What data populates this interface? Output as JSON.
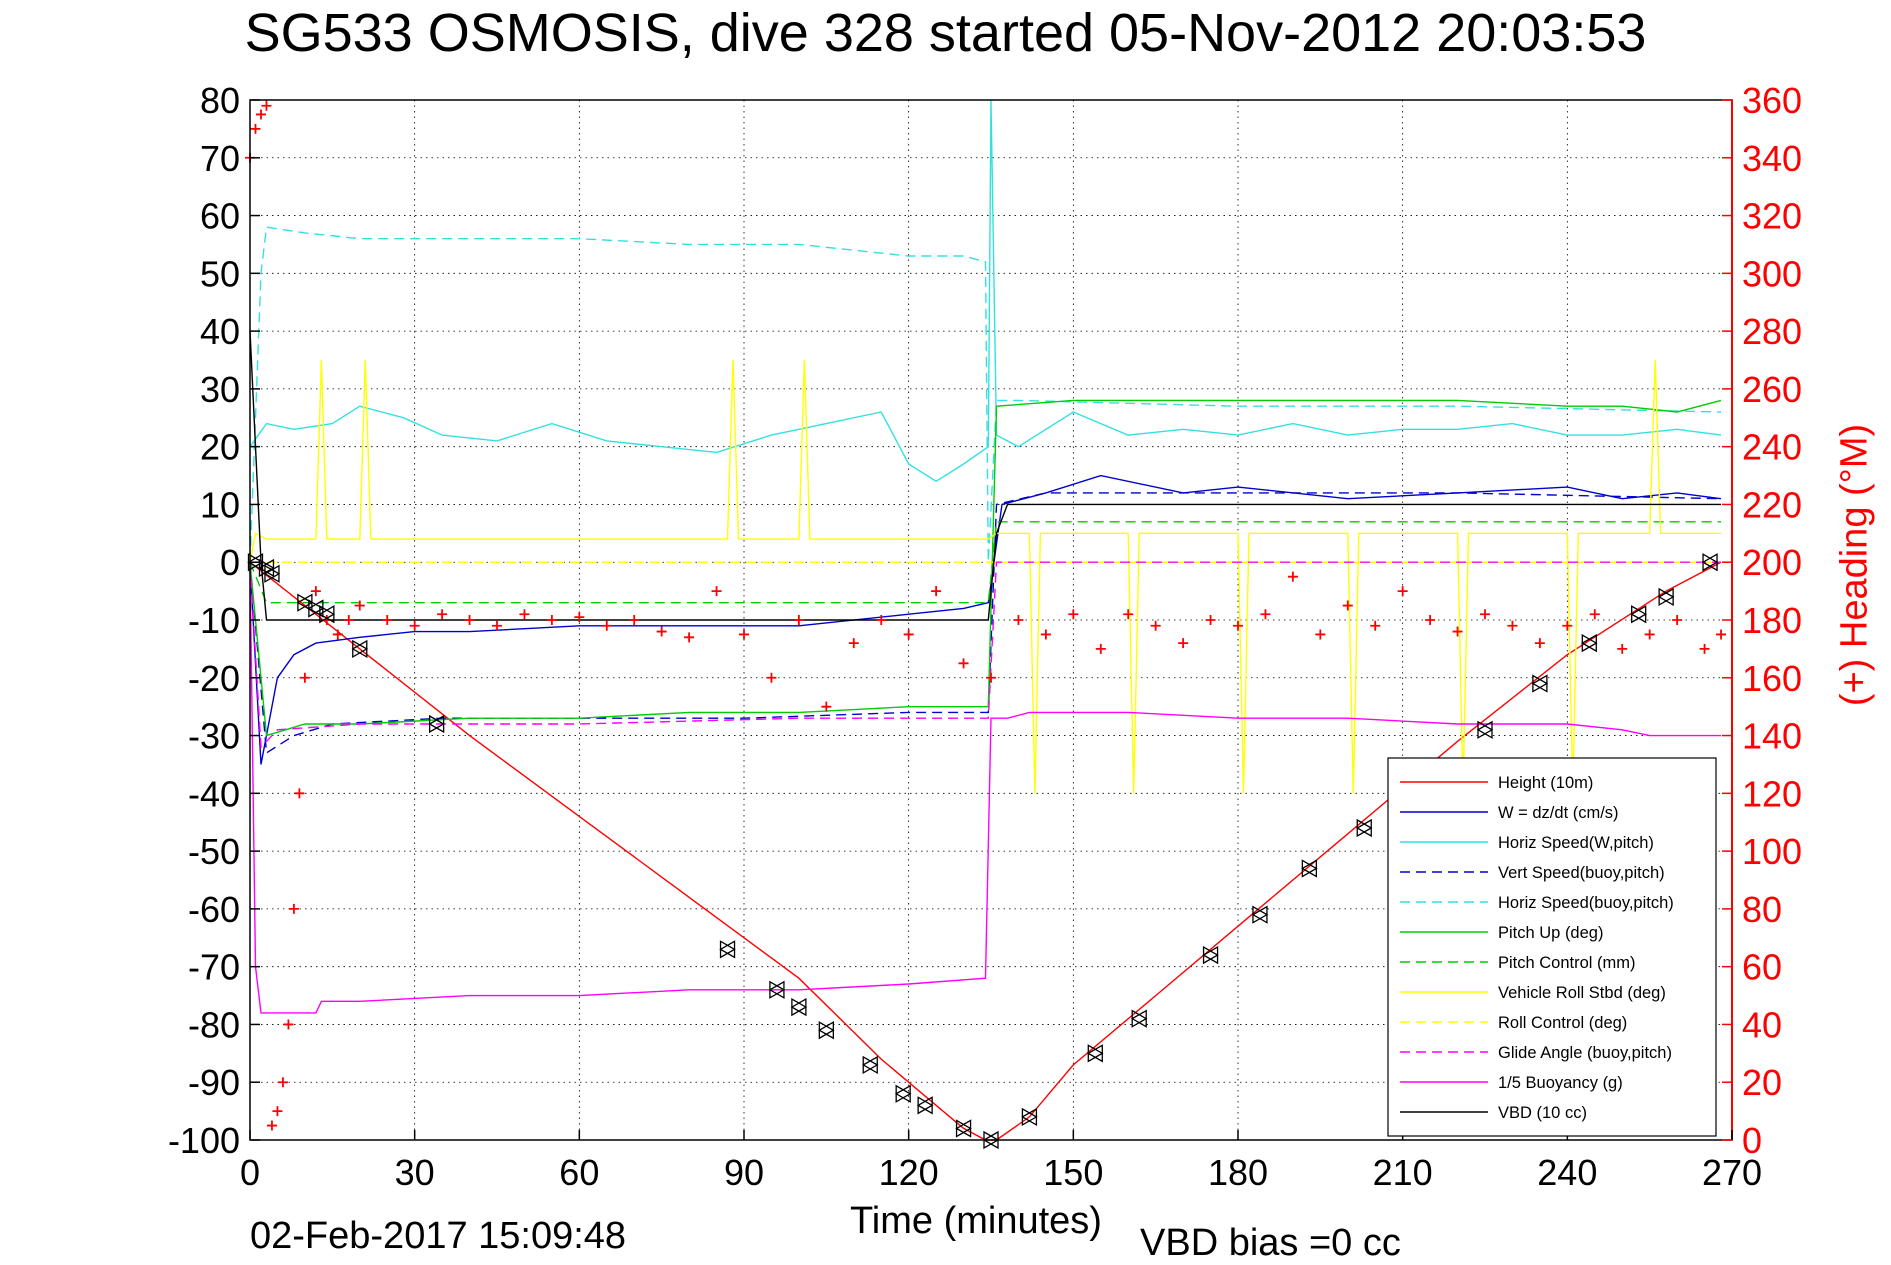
{
  "chart_data": {
    "type": "line",
    "title": "SG533 OSMOSIS, dive 328 started 05-Nov-2012 20:03:53",
    "xlabel": "Time (minutes)",
    "ylabel": "",
    "ylabel_right": "(+) Heading (°M)",
    "footer_date": "02-Feb-2017 15:09:48",
    "footer_note": "VBD bias =0 cc",
    "xlim": [
      0,
      270
    ],
    "ylim": [
      -100,
      80
    ],
    "ylim_right": [
      0,
      360
    ],
    "x_ticks": [
      0,
      30,
      60,
      90,
      120,
      150,
      180,
      210,
      240,
      270
    ],
    "x_tick_labels": [
      "0",
      "30",
      "60",
      "90",
      "120",
      "150",
      "180",
      "210",
      "240",
      "270"
    ],
    "y_ticks": [
      80,
      70,
      60,
      50,
      40,
      30,
      20,
      10,
      0,
      -10,
      -20,
      -30,
      -40,
      -50,
      -60,
      -70,
      -80,
      -90,
      -100
    ],
    "y_tick_labels": [
      "80",
      "70",
      "60",
      "50",
      "40",
      "30",
      "20",
      "10",
      "0",
      "-10",
      "-20",
      "-30",
      "-40",
      "-50",
      "-60",
      "-70",
      "-80",
      "-90",
      "-100"
    ],
    "y2_ticks": [
      360,
      340,
      320,
      300,
      280,
      260,
      240,
      220,
      200,
      180,
      160,
      140,
      120,
      100,
      80,
      60,
      40,
      20,
      0
    ],
    "y2_tick_labels": [
      "360",
      "340",
      "320",
      "300",
      "280",
      "260",
      "240",
      "220",
      "200",
      "180",
      "160",
      "140",
      "120",
      "100",
      "80",
      "60",
      "40",
      "20",
      "0"
    ],
    "grid": true,
    "legend_position": "bottom-right",
    "colors": {
      "red": "#ff0000",
      "blue": "#0000cc",
      "cyan": "#33e0e0",
      "green": "#00cc00",
      "yellow": "#ffff00",
      "magenta": "#ff00ff",
      "black": "#000000"
    },
    "series": [
      {
        "name": "Height (10m)",
        "color": "#ff0000",
        "dash": "solid",
        "x": [
          0,
          20,
          40,
          60,
          80,
          100,
          115,
          125,
          130,
          134,
          136,
          142,
          150,
          165,
          180,
          200,
          220,
          240,
          258,
          268
        ],
        "y": [
          0,
          -15,
          -30,
          -44,
          -58,
          -72,
          -86,
          -94,
          -98,
          -100,
          -100,
          -96,
          -87,
          -75,
          -63,
          -47,
          -31,
          -16,
          -5,
          0
        ]
      },
      {
        "name": "W = dz/dt (cm/s)",
        "color": "#0000cc",
        "dash": "solid",
        "x": [
          0,
          2,
          5,
          8,
          12,
          20,
          30,
          40,
          60,
          80,
          100,
          120,
          130,
          134.5,
          137,
          145,
          155,
          170,
          180,
          200,
          220,
          240,
          250,
          260,
          268
        ],
        "y": [
          0,
          -35,
          -20,
          -16,
          -14,
          -13,
          -12,
          -12,
          -11,
          -11,
          -11,
          -9,
          -8,
          -7,
          10,
          12,
          15,
          12,
          13,
          11,
          12,
          13,
          11,
          12,
          11
        ]
      },
      {
        "name": "Horiz Speed(W,pitch)",
        "color": "#33e0e0",
        "dash": "solid",
        "x": [
          0,
          3,
          8,
          15,
          20,
          28,
          35,
          45,
          55,
          65,
          75,
          85,
          95,
          105,
          115,
          120,
          125,
          130,
          134.5,
          135,
          136,
          140,
          150,
          160,
          170,
          180,
          190,
          200,
          210,
          220,
          230,
          240,
          250,
          260,
          268
        ],
        "y": [
          20,
          24,
          23,
          24,
          27,
          25,
          22,
          21,
          24,
          21,
          20,
          19,
          22,
          24,
          26,
          17,
          14,
          17,
          20,
          80,
          22,
          20,
          26,
          22,
          23,
          22,
          24,
          22,
          23,
          23,
          24,
          22,
          22,
          23,
          22
        ]
      },
      {
        "name": "Vert Speed(buoy,pitch)",
        "color": "#0000cc",
        "dash": "dashed",
        "x": [
          0,
          3,
          8,
          15,
          35,
          60,
          90,
          120,
          134.5,
          136,
          145,
          180,
          220,
          268
        ],
        "y": [
          0,
          -33,
          -30,
          -28,
          -27,
          -27,
          -27,
          -26,
          -26,
          10,
          12,
          12,
          12,
          11
        ]
      },
      {
        "name": "Horiz Speed(buoy,pitch)",
        "color": "#33e0e0",
        "dash": "dashed",
        "x": [
          0,
          2,
          3,
          10,
          20,
          40,
          60,
          80,
          100,
          110,
          120,
          130,
          134,
          134.5,
          136,
          140,
          180,
          220,
          268
        ],
        "y": [
          0,
          50,
          58,
          57,
          56,
          56,
          56,
          55,
          55,
          54,
          53,
          53,
          52,
          0,
          28,
          28,
          27,
          27,
          26
        ]
      },
      {
        "name": "Pitch Up (deg)",
        "color": "#00cc00",
        "dash": "solid",
        "x": [
          0,
          3,
          10,
          20,
          40,
          60,
          80,
          100,
          120,
          134.5,
          136,
          150,
          170,
          180,
          200,
          220,
          240,
          250,
          260,
          268
        ],
        "y": [
          0,
          -30,
          -28,
          -28,
          -27,
          -27,
          -26,
          -26,
          -25,
          -25,
          27,
          28,
          28,
          28,
          28,
          28,
          27,
          27,
          26,
          28
        ]
      },
      {
        "name": "Pitch Control (mm)",
        "color": "#00cc00",
        "dash": "dashed",
        "x": [
          0,
          3,
          134.5,
          136,
          268
        ],
        "y": [
          0,
          -7,
          -7,
          7,
          7
        ]
      },
      {
        "name": "Vehicle Roll Stbd (deg)",
        "color": "#ffff00",
        "dash": "solid",
        "x": [
          0,
          1,
          3,
          8,
          12,
          13,
          14,
          20,
          21,
          22,
          87,
          88,
          89,
          100,
          101,
          102,
          134.5,
          136,
          142,
          143,
          144,
          160,
          161,
          162,
          180,
          181,
          182,
          200,
          201,
          202,
          220,
          221,
          222,
          240,
          241,
          242,
          255,
          256,
          257,
          268
        ],
        "y": [
          0,
          5,
          4,
          4,
          4,
          35,
          4,
          4,
          35,
          4,
          4,
          35,
          4,
          4,
          35,
          4,
          4,
          5,
          5,
          -40,
          5,
          5,
          -40,
          5,
          5,
          -40,
          5,
          5,
          -40,
          5,
          5,
          -40,
          5,
          5,
          -40,
          5,
          5,
          35,
          5,
          5
        ]
      },
      {
        "name": "Roll Control (deg)",
        "color": "#ffff00",
        "dash": "dashed",
        "x": [
          0,
          268
        ],
        "y": [
          0,
          0
        ]
      },
      {
        "name": "Glide Angle (buoy,pitch)",
        "color": "#ff00ff",
        "dash": "dashed",
        "x": [
          0,
          2,
          5,
          20,
          60,
          100,
          134.5,
          136,
          268
        ],
        "y": [
          0,
          -32,
          -29,
          -28,
          -28,
          -27,
          -27,
          0,
          0
        ]
      },
      {
        "name": "1/5 Buoyancy (g)",
        "color": "#ff00ff",
        "dash": "solid",
        "x": [
          0,
          1,
          2,
          8,
          12,
          13,
          20,
          40,
          60,
          80,
          100,
          120,
          134,
          135,
          138,
          142,
          160,
          180,
          200,
          220,
          240,
          250,
          255,
          260,
          268
        ],
        "y": [
          0,
          -70,
          -78,
          -78,
          -78,
          -76,
          -76,
          -75,
          -75,
          -74,
          -74,
          -73,
          -72,
          -27,
          -27,
          -26,
          -26,
          -27,
          -27,
          -28,
          -28,
          -29,
          -30,
          -30,
          -30
        ]
      },
      {
        "name": "VBD (10 cc)",
        "color": "#000000",
        "dash": "solid",
        "x": [
          0,
          2,
          3,
          134.5,
          136,
          138,
          268
        ],
        "y": [
          40,
          0,
          -10,
          -10,
          5,
          10,
          10
        ]
      },
      {
        "name": "(+) Heading",
        "color": "#ff0000",
        "marker": "+",
        "axis": "right",
        "x": [
          0,
          1,
          2,
          3,
          4,
          5,
          6,
          7,
          8,
          9,
          10,
          12,
          14,
          16,
          18,
          20,
          25,
          30,
          35,
          40,
          45,
          50,
          55,
          60,
          65,
          70,
          75,
          80,
          85,
          90,
          95,
          100,
          105,
          110,
          115,
          120,
          125,
          130,
          135,
          140,
          145,
          150,
          155,
          160,
          165,
          170,
          175,
          180,
          185,
          190,
          195,
          200,
          205,
          210,
          215,
          220,
          225,
          230,
          235,
          240,
          245,
          250,
          255,
          260,
          265,
          268
        ],
        "y": [
          340,
          350,
          355,
          358,
          5,
          10,
          20,
          40,
          80,
          120,
          160,
          190,
          180,
          175,
          180,
          185,
          180,
          178,
          182,
          180,
          178,
          182,
          180,
          181,
          178,
          180,
          176,
          174,
          190,
          175,
          160,
          180,
          150,
          172,
          180,
          175,
          190,
          165,
          160,
          180,
          175,
          182,
          170,
          182,
          178,
          172,
          180,
          178,
          182,
          195,
          175,
          185,
          178,
          190,
          180,
          176,
          182,
          178,
          172,
          178,
          182,
          170,
          175,
          180,
          170,
          175
        ]
      }
    ],
    "markers_note": "",
    "height_markers": {
      "x": [
        1,
        3,
        4,
        10,
        12,
        14,
        20,
        34,
        87,
        96,
        100,
        105,
        113,
        119,
        123,
        130,
        135,
        142,
        154,
        162,
        175,
        184,
        193,
        203,
        225,
        235,
        244,
        253,
        258,
        266
      ],
      "y": [
        0,
        -1,
        -2,
        -7,
        -8,
        -9,
        -15,
        -28,
        -67,
        -74,
        -77,
        -81,
        -87,
        -92,
        -94,
        -98,
        -100,
        -96,
        -85,
        -79,
        -68,
        -61,
        -53,
        -46,
        -29,
        -21,
        -14,
        -9,
        -6,
        0
      ]
    }
  }
}
